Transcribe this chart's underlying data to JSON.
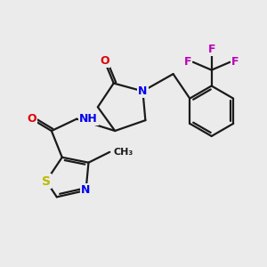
{
  "background_color": "#ebebeb",
  "bond_color": "#1a1a1a",
  "atom_colors": {
    "O": "#dd0000",
    "N": "#0000ee",
    "S": "#bbbb00",
    "F": "#bb00bb",
    "C": "#1a1a1a",
    "H": "#555555"
  },
  "font_size": 9,
  "bond_width": 1.6,
  "figsize": [
    3.0,
    3.0
  ],
  "dpi": 100
}
